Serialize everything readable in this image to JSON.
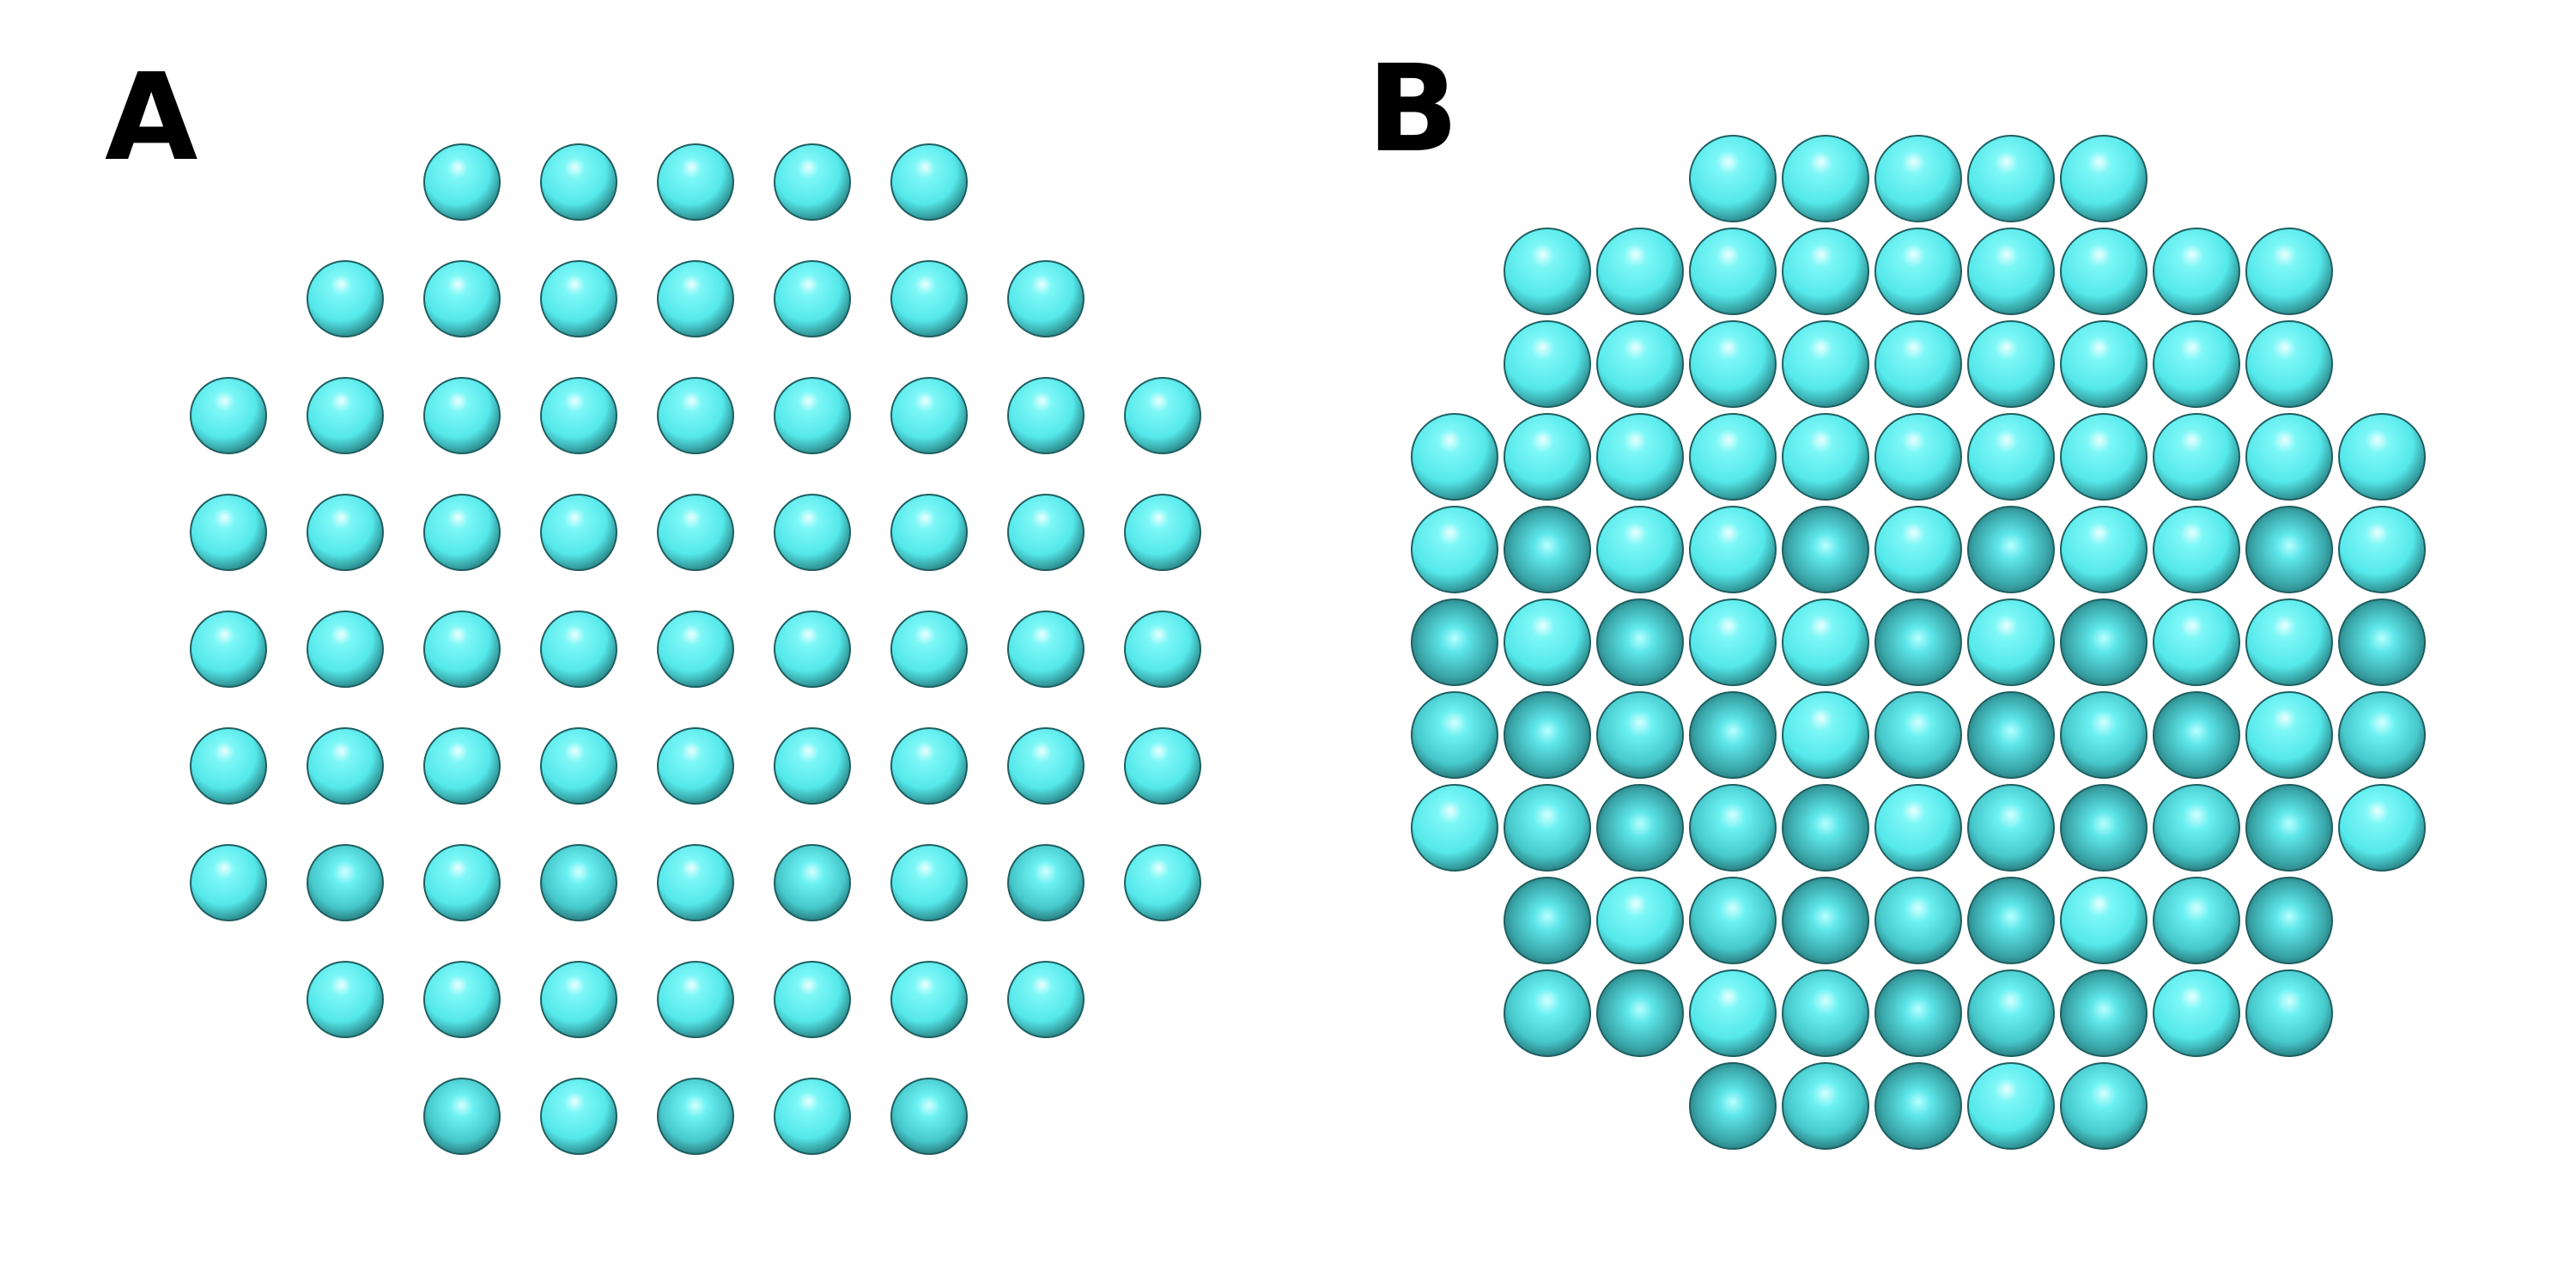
{
  "panels": {
    "a": {
      "label": "A",
      "row_counts": [
        5,
        7,
        9,
        9,
        9,
        9,
        9,
        7,
        5
      ]
    },
    "b": {
      "label": "B",
      "row_counts": [
        5,
        9,
        9,
        11,
        11,
        11,
        11,
        11,
        9,
        9,
        5
      ]
    }
  },
  "colors": {
    "sphere_light": "#5ff0f0",
    "sphere_dark": "#2a9a9c",
    "sphere_shadow": "#0f3e40",
    "highlight": "#e8ffff"
  }
}
